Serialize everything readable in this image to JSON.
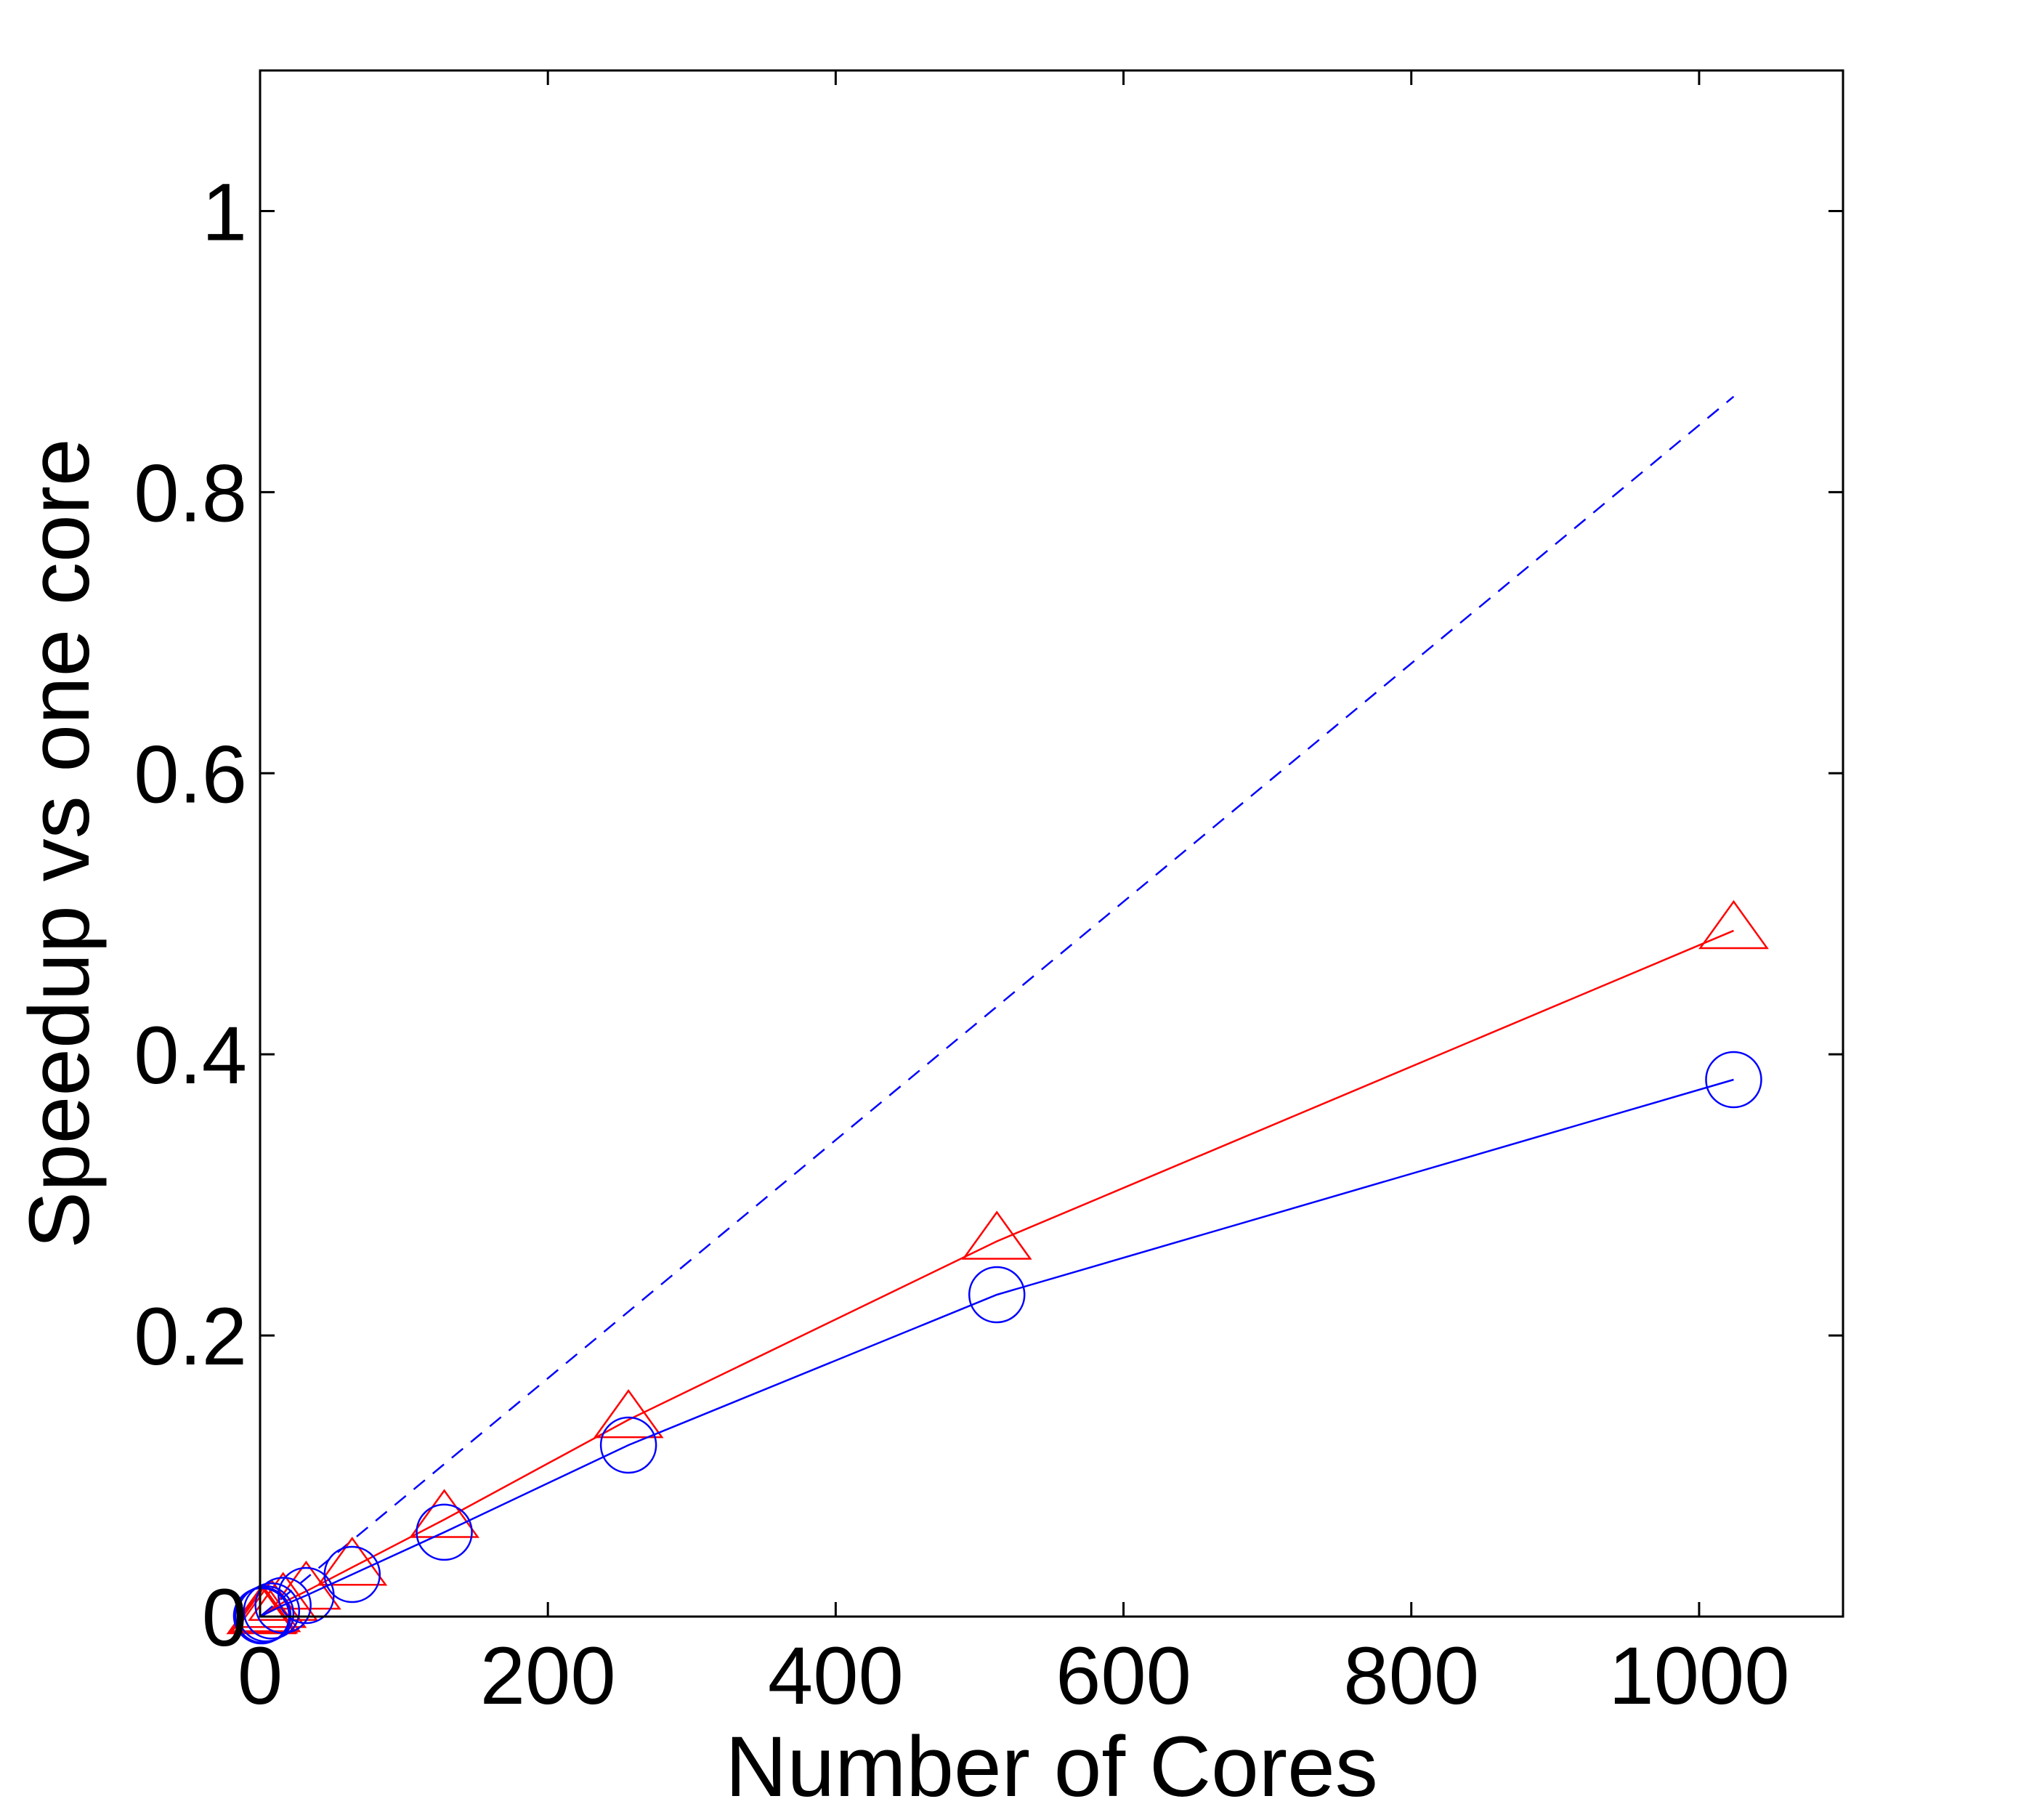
{
  "chart_data": {
    "type": "line",
    "title": "",
    "xlabel": "Number of Cores",
    "ylabel": "Speedup vs one core",
    "xlim": [
      0,
      1100
    ],
    "ylim": [
      0,
      1.1
    ],
    "xticks": [
      0,
      200,
      400,
      600,
      800,
      1000
    ],
    "xtick_labels": [
      "0",
      "200",
      "400",
      "600",
      "800",
      "1000"
    ],
    "yticks": [
      0,
      0.2,
      0.4,
      0.6,
      0.8,
      1
    ],
    "ytick_labels": [
      "0",
      "0.2",
      "0.4",
      "0.6",
      "0.8",
      "1"
    ],
    "grid": false,
    "legend": "none",
    "series": [
      {
        "color": "#0000ff",
        "line_style": "dashed",
        "marker": "none",
        "x": [
          1,
          1024
        ],
        "y": [
          0.00085,
          0.868
        ]
      },
      {
        "color": "#ff0000",
        "line_style": "solid",
        "marker": "triangle",
        "x": [
          1,
          2,
          4,
          8,
          16,
          32,
          64,
          128,
          256,
          512,
          1024
        ],
        "y": [
          0.0005,
          0.001,
          0.002,
          0.005,
          0.01,
          0.018,
          0.035,
          0.069,
          0.14,
          0.267,
          0.488
        ]
      },
      {
        "color": "#0000ff",
        "line_style": "solid",
        "marker": "circle",
        "x": [
          1,
          2,
          4,
          8,
          16,
          32,
          64,
          128,
          256,
          512,
          1024
        ],
        "y": [
          0.0005,
          0.001,
          0.002,
          0.004,
          0.008,
          0.015,
          0.03,
          0.06,
          0.122,
          0.229,
          0.382
        ]
      }
    ]
  }
}
